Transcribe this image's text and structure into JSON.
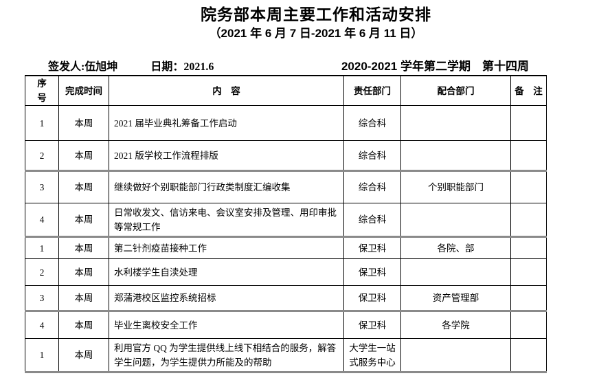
{
  "page": {
    "title": "院务部本周主要工作和活动安排",
    "subtitle": "（2021 年 6 月 7 日-2021 年 6 月 11 日）"
  },
  "meta": {
    "issuer_label": "签发人:",
    "issuer_name": "伍旭坤",
    "date_label": "日期：",
    "date_value": "2021.6",
    "semester": "2020-2021 学年第二学期　第十四周"
  },
  "table": {
    "headers": [
      "序　号",
      "完成时间",
      "内　容",
      "责任部门",
      "配合部门",
      "备　注"
    ],
    "rows": [
      {
        "no": "1",
        "time": "本周",
        "content": "2021 届毕业典礼筹备工作启动",
        "dept": "综合科",
        "coop": "",
        "note": "",
        "group_end": false
      },
      {
        "no": "2",
        "time": "本周",
        "content": "2021 版学校工作流程排版",
        "dept": "综合科",
        "coop": "",
        "note": "",
        "group_end": true
      },
      {
        "no": "3",
        "time": "本周",
        "content": "继续做好个别职能部门行政类制度汇编收集",
        "dept": "综合科",
        "coop": "个别职能部门",
        "note": "",
        "group_end": false
      },
      {
        "no": "4",
        "time": "本周",
        "content": "日常收发文、信访来电、会议室安排及管理、用印审批等常规工作",
        "dept": "综合科",
        "coop": "",
        "note": "",
        "group_end": true
      },
      {
        "no": "1",
        "time": "本周",
        "content": "第二针剂疫苗接种工作",
        "dept": "保卫科",
        "coop": "各院、部",
        "note": "",
        "group_end": false
      },
      {
        "no": "2",
        "time": "本周",
        "content": "水利楼学生自渎处理",
        "dept": "保卫科",
        "coop": "",
        "note": "",
        "group_end": false
      },
      {
        "no": "3",
        "time": "本周",
        "content": "郑蒲港校区监控系统招标",
        "dept": "保卫科",
        "coop": "资产管理部",
        "note": "",
        "group_end": true
      },
      {
        "no": "4",
        "time": "本周",
        "content": "毕业生离校安全工作",
        "dept": "保卫科",
        "coop": "各学院",
        "note": "",
        "group_end": false
      },
      {
        "no": "1",
        "time": "本周",
        "content": "利用官方 QQ 为学生提供线上线下相结合的服务，解答学生问题，为学生提供力所能及的帮助",
        "dept": "大学生一站式服务中心",
        "coop": "",
        "note": "",
        "group_end": true
      }
    ]
  }
}
